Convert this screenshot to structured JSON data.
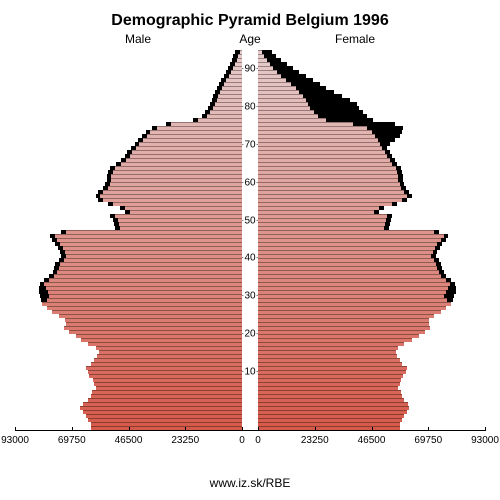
{
  "chart": {
    "type": "population-pyramid",
    "title": "Demographic Pyramid Belgium 1996",
    "labels": {
      "male": "Male",
      "age": "Age",
      "female": "Female"
    },
    "footer": "www.iz.sk/RBE",
    "background_color": "#ffffff",
    "shadow_color": "#000000",
    "title_fontsize": 16,
    "label_fontsize": 12,
    "tick_fontsize": 10,
    "x_axis": {
      "max": 93000,
      "ticks_left": [
        93000,
        69750,
        46500,
        23250,
        0
      ],
      "ticks_right": [
        0,
        23250,
        46500,
        69750,
        93000
      ]
    },
    "age_axis": {
      "max": 95,
      "ticks": [
        10,
        20,
        30,
        40,
        50,
        60,
        70,
        80,
        90
      ]
    },
    "color_gradient": {
      "bottom": "#d65a4a",
      "top": "#e6cccc"
    },
    "male": [
      62000,
      62000,
      63000,
      64000,
      65000,
      66500,
      65000,
      63000,
      62000,
      61500,
      60000,
      60500,
      61000,
      62500,
      63000,
      64000,
      62000,
      60500,
      59500,
      58500,
      60000,
      63000,
      66000,
      68000,
      71000,
      73000,
      72000,
      72500,
      75000,
      78000,
      80000,
      82000,
      80000,
      79000,
      79500,
      80500,
      81000,
      79000,
      77000,
      76000,
      75000,
      74500,
      73000,
      72000,
      72500,
      73500,
      74500,
      76000,
      76500,
      72000,
      50000,
      50500,
      51000,
      52000,
      46000,
      48000,
      53000,
      57000,
      58000,
      57000,
      55000,
      54000,
      53500,
      53500,
      53000,
      52000,
      49500,
      47500,
      46000,
      45000,
      43500,
      42000,
      40500,
      39000,
      37500,
      35000,
      29000,
      18000,
      14500,
      13000,
      11800,
      11000,
      10300,
      9800,
      9100,
      8400,
      7500,
      6500,
      5500,
      4500,
      3600,
      2800,
      2100,
      1500,
      1000
    ],
    "female": [
      58000,
      58000,
      59000,
      60000,
      61000,
      62000,
      61500,
      60000,
      59000,
      58500,
      57500,
      58000,
      58500,
      59500,
      60500,
      61000,
      59000,
      58000,
      57000,
      56500,
      57500,
      60000,
      63000,
      66000,
      68500,
      70500,
      70000,
      70000,
      72000,
      75000,
      77000,
      79000,
      77500,
      76000,
      77000,
      78000,
      78500,
      77000,
      75000,
      74000,
      73500,
      73000,
      72000,
      71000,
      71500,
      72500,
      73500,
      75000,
      76000,
      72000,
      51500,
      52000,
      52500,
      53000,
      47500,
      49500,
      55000,
      59000,
      61000,
      60000,
      58500,
      58000,
      57500,
      57500,
      57000,
      56500,
      55000,
      54000,
      53000,
      52000,
      51000,
      50000,
      49000,
      48000,
      46500,
      44500,
      39000,
      28000,
      24500,
      23000,
      21500,
      20500,
      19500,
      18500,
      17000,
      15500,
      13500,
      11500,
      9500,
      7800,
      6200,
      4800,
      3500,
      2400,
      1600
    ],
    "male_shadow": [
      62000,
      62000,
      63000,
      64000,
      65000,
      66500,
      65000,
      63000,
      62000,
      61500,
      60000,
      60500,
      61000,
      62500,
      63000,
      64000,
      62000,
      60500,
      59500,
      58500,
      60000,
      63000,
      66000,
      68000,
      71000,
      73000,
      72000,
      72500,
      75000,
      78000,
      80000,
      82000,
      82500,
      82800,
      83000,
      83000,
      82800,
      81000,
      79000,
      77500,
      77000,
      76500,
      75000,
      74000,
      74500,
      75500,
      76500,
      78000,
      78500,
      74000,
      52000,
      52500,
      53000,
      54000,
      48000,
      50000,
      55000,
      59000,
      60000,
      59000,
      57000,
      56000,
      55500,
      55500,
      55000,
      54000,
      51500,
      49500,
      48000,
      47000,
      45500,
      44000,
      42500,
      41000,
      39500,
      37000,
      31000,
      20000,
      16500,
      15000,
      13800,
      13000,
      12300,
      11800,
      11100,
      10400,
      9500,
      8500,
      7500,
      6500,
      5600,
      4800,
      4100,
      3500,
      3000
    ],
    "female_shadow": [
      58000,
      58000,
      59000,
      60000,
      61000,
      62000,
      61500,
      60000,
      59000,
      58500,
      57500,
      58000,
      58500,
      59500,
      60500,
      61000,
      59000,
      58000,
      57000,
      56500,
      57500,
      60000,
      63000,
      66000,
      68500,
      70500,
      70000,
      70000,
      72000,
      75000,
      77000,
      79000,
      80000,
      80500,
      81000,
      81000,
      80800,
      79000,
      77000,
      76000,
      75500,
      75000,
      74000,
      73000,
      73500,
      74500,
      75500,
      77000,
      78000,
      74000,
      53500,
      54000,
      54500,
      55000,
      49500,
      51500,
      57000,
      61000,
      63000,
      62000,
      60500,
      60000,
      59500,
      59500,
      59000,
      58500,
      57000,
      56000,
      55000,
      54000,
      53000,
      54000,
      56000,
      58000,
      59000,
      59500,
      56000,
      47000,
      44500,
      43000,
      41500,
      40500,
      37500,
      34500,
      31000,
      28000,
      25500,
      22500,
      19500,
      17000,
      14500,
      11800,
      9500,
      7400,
      5600
    ]
  }
}
